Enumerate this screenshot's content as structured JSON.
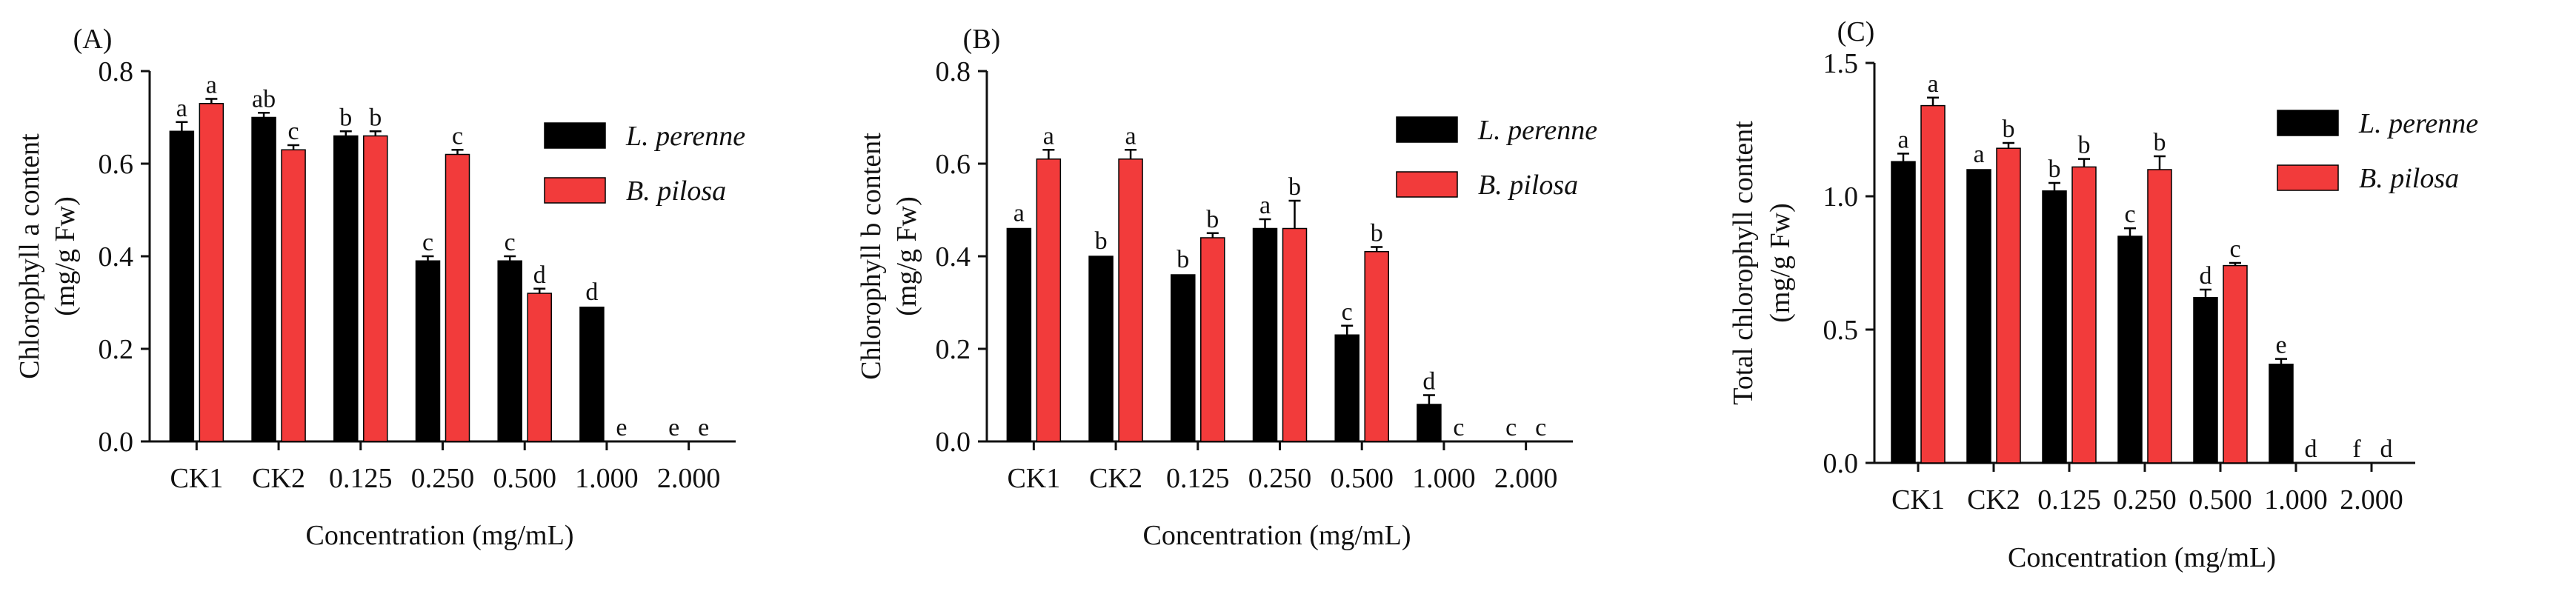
{
  "colors": {
    "l_perenne": "#000000",
    "b_pilosa": "#f23b3b",
    "axis": "#111111"
  },
  "chart_data": [
    {
      "type": "bar",
      "panel_label": "(A)",
      "ylabel_line1": "Chlorophyll a content",
      "ylabel_line2": "(mg/g Fw)",
      "xlabel": "Concentration (mg/mL)",
      "categories": [
        "CK1",
        "CK2",
        "0.125",
        "0.250",
        "0.500",
        "1.000",
        "2.000"
      ],
      "ylim": [
        0,
        0.8
      ],
      "yticks": [
        "0.0",
        "0.2",
        "0.4",
        "0.6",
        "0.8"
      ],
      "series": [
        {
          "name": "L. perenne",
          "values": [
            0.67,
            0.7,
            0.66,
            0.39,
            0.39,
            0.29,
            0.0
          ],
          "errors": [
            0.02,
            0.01,
            0.01,
            0.01,
            0.01,
            0.0,
            0.0
          ],
          "letters": [
            "a",
            "ab",
            "b",
            "c",
            "c",
            "d",
            "e"
          ]
        },
        {
          "name": "B. pilosa",
          "values": [
            0.73,
            0.63,
            0.66,
            0.62,
            0.32,
            0.0,
            0.0
          ],
          "errors": [
            0.01,
            0.01,
            0.01,
            0.01,
            0.01,
            0.0,
            0.0
          ],
          "letters": [
            "a",
            "c",
            "b",
            "c",
            "d",
            "e",
            "e"
          ]
        }
      ]
    },
    {
      "type": "bar",
      "panel_label": "(B)",
      "ylabel_line1": "Chlorophyll b content",
      "ylabel_line2": "(mg/g Fw)",
      "xlabel": "Concentration (mg/mL)",
      "categories": [
        "CK1",
        "CK2",
        "0.125",
        "0.250",
        "0.500",
        "1.000",
        "2.000"
      ],
      "ylim": [
        0,
        0.8
      ],
      "yticks": [
        "0.0",
        "0.2",
        "0.4",
        "0.6",
        "0.8"
      ],
      "series": [
        {
          "name": "L. perenne",
          "values": [
            0.46,
            0.4,
            0.36,
            0.46,
            0.23,
            0.08,
            0.0
          ],
          "errors": [
            0.0,
            0.0,
            0.0,
            0.02,
            0.02,
            0.02,
            0.0
          ],
          "letters": [
            "a",
            "b",
            "b",
            "a",
            "c",
            "d",
            "c"
          ]
        },
        {
          "name": "B. pilosa",
          "values": [
            0.61,
            0.61,
            0.44,
            0.46,
            0.41,
            0.0,
            0.0
          ],
          "errors": [
            0.02,
            0.02,
            0.01,
            0.06,
            0.01,
            0.0,
            0.0
          ],
          "letters": [
            "a",
            "a",
            "b",
            "b",
            "b",
            "c",
            "c"
          ]
        }
      ]
    },
    {
      "type": "bar",
      "panel_label": "(C)",
      "ylabel_line1": "Total chlorophyll content",
      "ylabel_line2": "(mg/g Fw)",
      "xlabel": "Concentration (mg/mL)",
      "categories": [
        "CK1",
        "CK2",
        "0.125",
        "0.250",
        "0.500",
        "1.000",
        "2.000"
      ],
      "ylim": [
        0,
        1.5
      ],
      "yticks": [
        "0.0",
        "0.5",
        "1.0",
        "1.5"
      ],
      "series": [
        {
          "name": "L. perenne",
          "values": [
            1.13,
            1.1,
            1.02,
            0.85,
            0.62,
            0.37,
            0.0
          ],
          "errors": [
            0.03,
            0.0,
            0.03,
            0.03,
            0.03,
            0.02,
            0.0
          ],
          "letters": [
            "a",
            "a",
            "b",
            "c",
            "d",
            "e",
            "f"
          ]
        },
        {
          "name": "B. pilosa",
          "values": [
            1.34,
            1.18,
            1.11,
            1.1,
            0.74,
            0.0,
            0.0
          ],
          "errors": [
            0.03,
            0.02,
            0.03,
            0.05,
            0.01,
            0.0,
            0.0
          ],
          "letters": [
            "a",
            "b",
            "b",
            "b",
            "c",
            "d",
            "d"
          ]
        }
      ]
    }
  ]
}
